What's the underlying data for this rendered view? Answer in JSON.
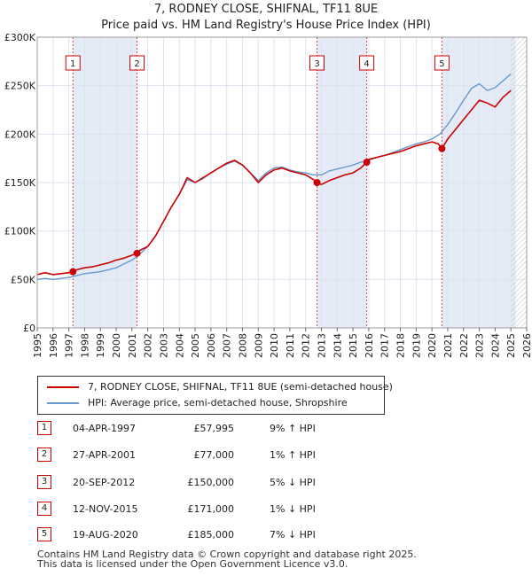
{
  "title_line1": "7, RODNEY CLOSE, SHIFNAL, TF11 8UE",
  "title_line2": "Price paid vs. HM Land Registry's House Price Index (HPI)",
  "legend": {
    "property_label": "7, RODNEY CLOSE, SHIFNAL, TF11 8UE (semi-detached house)",
    "hpi_label": "HPI: Average price, semi-detached house, Shropshire"
  },
  "colors": {
    "property": "#cc0000",
    "hpi": "#6699cc",
    "grid": "#dde3ee",
    "shade": "#dde6f5"
  },
  "sales": [
    {
      "num": "1",
      "date": "04-APR-1997",
      "price": "£57,995",
      "hpi": "9% ↑ HPI"
    },
    {
      "num": "2",
      "date": "27-APR-2001",
      "price": "£77,000",
      "hpi": "1% ↑ HPI"
    },
    {
      "num": "3",
      "date": "20-SEP-2012",
      "price": "£150,000",
      "hpi": "5% ↓ HPI"
    },
    {
      "num": "4",
      "date": "12-NOV-2015",
      "price": "£171,000",
      "hpi": "1% ↓ HPI"
    },
    {
      "num": "5",
      "date": "19-AUG-2020",
      "price": "£185,000",
      "hpi": "7% ↓ HPI"
    }
  ],
  "footer": {
    "line1": "Contains HM Land Registry data © Crown copyright and database right 2025.",
    "line2": "This data is licensed under the Open Government Licence v3.0."
  },
  "chart_data": {
    "type": "line",
    "title": "7, RODNEY CLOSE, SHIFNAL, TF11 8UE",
    "subtitle": "Price paid vs. HM Land Registry's House Price Index (HPI)",
    "xlim": [
      1995,
      2026
    ],
    "ylim": [
      0,
      300000
    ],
    "y_ticks": [
      0,
      50000,
      100000,
      150000,
      200000,
      250000,
      300000
    ],
    "y_tick_labels": [
      "£0",
      "£50K",
      "£100K",
      "£150K",
      "£200K",
      "£250K",
      "£300K"
    ],
    "x_ticks": [
      1995,
      1996,
      1997,
      1998,
      1999,
      2000,
      2001,
      2002,
      2003,
      2004,
      2005,
      2006,
      2007,
      2008,
      2009,
      2010,
      2011,
      2012,
      2013,
      2014,
      2015,
      2016,
      2017,
      2018,
      2019,
      2020,
      2021,
      2022,
      2023,
      2024,
      2025,
      2026
    ],
    "x_tick_labels": [
      "1995",
      "1996",
      "1997",
      "1998",
      "1999",
      "2000",
      "2001",
      "2002",
      "2003",
      "2004",
      "2005",
      "2006",
      "2007",
      "2008",
      "2009",
      "2010",
      "2011",
      "2012",
      "2013",
      "2014",
      "2015",
      "2016",
      "2017",
      "2018",
      "2019",
      "2020",
      "2021",
      "2022",
      "2023",
      "2024",
      "2025",
      "2026"
    ],
    "shaded_periods": [
      [
        1997.26,
        2001.32
      ],
      [
        2012.72,
        2015.87
      ],
      [
        2020.63,
        2025.3
      ]
    ],
    "hatched_from": 2025.0,
    "series": [
      {
        "name": "7, RODNEY CLOSE, SHIFNAL, TF11 8UE (semi-detached house)",
        "x": [
          1995.0,
          1995.5,
          1996.0,
          1996.5,
          1997.0,
          1997.26,
          1997.5,
          1998.0,
          1998.5,
          1999.0,
          1999.5,
          2000.0,
          2000.5,
          2001.0,
          2001.32,
          2001.5,
          2002.0,
          2002.5,
          2003.0,
          2003.5,
          2004.0,
          2004.5,
          2005.0,
          2005.5,
          2006.0,
          2006.5,
          2007.0,
          2007.5,
          2008.0,
          2008.5,
          2009.0,
          2009.5,
          2010.0,
          2010.5,
          2011.0,
          2011.5,
          2012.0,
          2012.5,
          2012.72,
          2013.0,
          2013.5,
          2014.0,
          2014.5,
          2015.0,
          2015.5,
          2015.87,
          2016.0,
          2016.5,
          2017.0,
          2017.5,
          2018.0,
          2018.5,
          2019.0,
          2019.5,
          2020.0,
          2020.4,
          2020.63,
          2021.0,
          2021.5,
          2022.0,
          2022.5,
          2023.0,
          2023.5,
          2024.0,
          2024.5,
          2025.0
        ],
        "values": [
          55000,
          57000,
          55000,
          56000,
          57000,
          57995,
          60000,
          62000,
          63000,
          65000,
          67000,
          70000,
          72000,
          75000,
          77000,
          80000,
          84000,
          95000,
          110000,
          125000,
          138000,
          155000,
          150000,
          155000,
          160000,
          165000,
          170000,
          173000,
          168000,
          160000,
          150000,
          158000,
          163000,
          165000,
          162000,
          160000,
          158000,
          153000,
          150000,
          148000,
          152000,
          155000,
          158000,
          160000,
          165000,
          171000,
          174000,
          176000,
          178000,
          180000,
          182000,
          185000,
          188000,
          190000,
          192000,
          190000,
          185000,
          195000,
          205000,
          215000,
          225000,
          235000,
          232000,
          228000,
          238000,
          245000
        ]
      },
      {
        "name": "HPI: Average price, semi-detached house, Shropshire",
        "x": [
          1995.0,
          1995.5,
          1996.0,
          1996.5,
          1997.0,
          1997.5,
          1998.0,
          1998.5,
          1999.0,
          1999.5,
          2000.0,
          2000.5,
          2001.0,
          2001.5,
          2002.0,
          2002.5,
          2003.0,
          2003.5,
          2004.0,
          2004.5,
          2005.0,
          2005.5,
          2006.0,
          2006.5,
          2007.0,
          2007.5,
          2008.0,
          2008.5,
          2009.0,
          2009.5,
          2010.0,
          2010.5,
          2011.0,
          2011.5,
          2012.0,
          2012.5,
          2013.0,
          2013.5,
          2014.0,
          2014.5,
          2015.0,
          2015.5,
          2016.0,
          2016.5,
          2017.0,
          2017.5,
          2018.0,
          2018.5,
          2019.0,
          2019.5,
          2020.0,
          2020.5,
          2021.0,
          2021.5,
          2022.0,
          2022.5,
          2023.0,
          2023.5,
          2024.0,
          2024.5,
          2025.0
        ],
        "values": [
          50000,
          51000,
          50000,
          51000,
          52000,
          54000,
          56000,
          57000,
          58000,
          60000,
          62000,
          66000,
          70000,
          76000,
          84000,
          95000,
          110000,
          125000,
          138000,
          153000,
          150000,
          154000,
          160000,
          165000,
          169000,
          172000,
          168000,
          160000,
          152000,
          160000,
          165000,
          166000,
          163000,
          161000,
          160000,
          158000,
          158000,
          162000,
          164000,
          166000,
          168000,
          171000,
          173000,
          176000,
          178000,
          181000,
          184000,
          187000,
          190000,
          192000,
          195000,
          200000,
          210000,
          222000,
          235000,
          247000,
          252000,
          245000,
          248000,
          255000,
          262000
        ]
      }
    ],
    "markers": [
      {
        "label": "1",
        "x": 1997.26,
        "y": 57995
      },
      {
        "label": "2",
        "x": 2001.32,
        "y": 77000
      },
      {
        "label": "3",
        "x": 2012.72,
        "y": 150000
      },
      {
        "label": "4",
        "x": 2015.87,
        "y": 171000
      },
      {
        "label": "5",
        "x": 2020.63,
        "y": 185000
      }
    ]
  }
}
